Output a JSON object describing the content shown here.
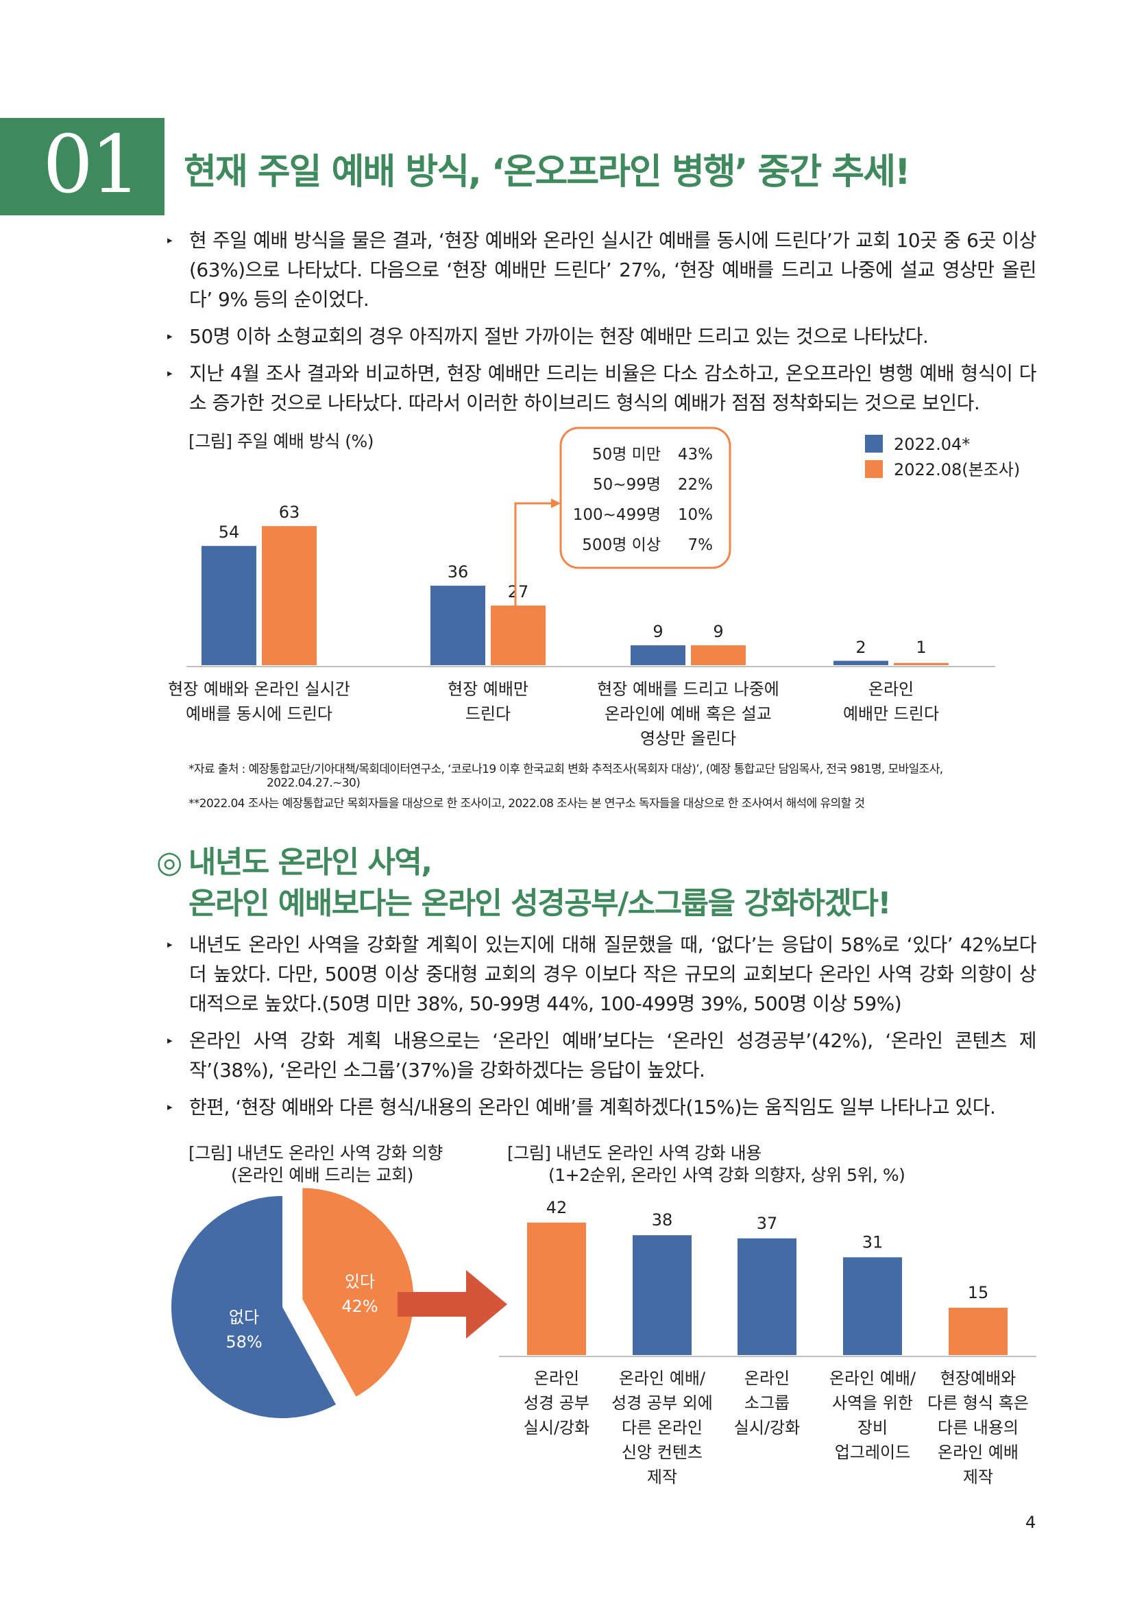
{
  "section": {
    "number": "01",
    "title": "현재 주일 예배 방식, ‘온오프라인 병행’ 중간 추세!"
  },
  "bullets1": [
    "현 주일 예배 방식을 물은 결과, ‘현장 예배와 온라인 실시간 예배를 동시에 드린다’가 교회 10곳 중 6곳 이상(63%)으로 나타났다. 다음으로 ‘현장 예배만 드린다’ 27%, ‘현장 예배를 드리고 나중에 설교 영상만 올린다’ 9% 등의 순이었다.",
    "50명 이하 소형교회의 경우 아직까지 절반 가까이는 현장 예배만 드리고 있는 것으로 나타났다.",
    "지난 4월 조사 결과와 비교하면, 현장 예배만 드리는 비율은 다소 감소하고, 온오프라인 병행 예배 형식이 다소 증가한 것으로 나타났다. 따라서 이러한 하이브리드 형식의 예배가 점점 정착화되는 것으로 보인다."
  ],
  "chart1": {
    "caption": "[그림] 주일 예배 방식 (%)",
    "callout": [
      {
        "label": "50명 미만",
        "value": "43%"
      },
      {
        "label": "50~99명",
        "value": "22%"
      },
      {
        "label": "100~499명",
        "value": "10%"
      },
      {
        "label": "500명 이상",
        "value": "7%"
      }
    ],
    "categories_lines": [
      [
        "현장 예배와 온라인 실시간",
        "예배를 동시에 드린다"
      ],
      [
        "현장 예배만",
        "드린다"
      ],
      [
        "현장 예배를 드리고 나중에",
        "온라인에 예배 혹은 설교",
        "영상만 올린다"
      ],
      [
        "온라인",
        "예배만 드린다"
      ]
    ]
  },
  "chart_data": [
    {
      "type": "bar",
      "title": "[그림] 주일 예배 방식 (%)",
      "categories": [
        "현장 예배와 온라인 실시간 예배를 동시에 드린다",
        "현장 예배만 드린다",
        "현장 예배를 드리고 나중에 온라인에 예배 혹은 설교 영상만 올린다",
        "온라인 예배만 드린다"
      ],
      "series": [
        {
          "name": "2022.04*",
          "values": [
            54,
            36,
            9,
            2
          ],
          "color": "#456ba7"
        },
        {
          "name": "2022.08(본조사)",
          "values": [
            63,
            27,
            9,
            1
          ],
          "color": "#f28448"
        }
      ],
      "ylim": [
        0,
        80
      ],
      "legend": "top-right",
      "grid": false
    },
    {
      "type": "pie",
      "title": "[그림] 내년도 온라인 사역 강화 의향 (온라인 예배 드리는 교회)",
      "slices": [
        {
          "label": "없다",
          "value": 58,
          "color": "#456ba7"
        },
        {
          "label": "있다",
          "value": 42,
          "color": "#f28448"
        }
      ]
    },
    {
      "type": "bar",
      "title": "[그림] 내년도 온라인 사역 강화 내용 (1+2순위, 온라인 사역 강화 의향자, 상위 5위, %)",
      "categories": [
        "온라인 성경 공부 실시/강화",
        "온라인 예배/ 성경 공부 외에 다른 온라인 신앙 컨텐츠 제작",
        "온라인 소그룹 실시/강화",
        "온라인 예배/ 사역을 위한 장비 업그레이드",
        "현장예배와 다른 형식 혹은 다른 내용의 온라인 예배 제작"
      ],
      "values": [
        42,
        38,
        37,
        31,
        15
      ],
      "colors": [
        "#f28448",
        "#456ba7",
        "#456ba7",
        "#456ba7",
        "#f28448"
      ],
      "ylim": [
        0,
        45
      ],
      "grid": false
    }
  ],
  "notes": {
    "n1a": "*자료 출처 : 예장통합교단/기아대책/목회데이터연구소, ‘코로나19 이후 한국교회 변화 추적조사(목회자 대상)’, (예장 통합교단 담임목사, 전국 981명, 모바일조사,",
    "n1b": "2022.04.27.~30)",
    "n2": "**2022.04 조사는 예장통합교단 목회자들을 대상으로 한 조사이고, 2022.08 조사는 본 연구소 독자들을 대상으로 한 조사여서 해석에 유의할 것"
  },
  "subheading": {
    "mark": "◎",
    "line1": "내년도 온라인 사역,",
    "line2": "온라인 예배보다는 온라인 성경공부/소그룹을 강화하겠다!"
  },
  "bullets2": [
    "내년도 온라인 사역을 강화할 계획이 있는지에 대해 질문했을 때, ‘없다’는 응답이 58%로 ‘있다’ 42%보다 더 높았다. 다만, 500명 이상 중대형 교회의 경우 이보다 작은 규모의 교회보다 온라인 사역 강화 의향이 상대적으로 높았다.(50명 미만 38%, 50-99명 44%, 100-499명 39%, 500명 이상 59%)",
    "온라인 사역 강화 계획 내용으로는 ‘온라인 예배’보다는 ‘온라인 성경공부’(42%), ‘온라인 콘텐츠 제작’(38%), ‘온라인 소그룹’(37%)을 강화하겠다는 응답이 높았다.",
    "한편, ‘현장 예배와 다른 형식/내용의 온라인 예배’를 계획하겠다(15%)는 움직임도 일부 나타나고 있다."
  ],
  "chart2": {
    "caption_line1": "[그림] 내년도 온라인 사역 강화 의향",
    "caption_line2": "(온라인 예배 드리는 교회)",
    "no_label": "없다",
    "no_value": "58%",
    "yes_label": "있다",
    "yes_value": "42%"
  },
  "chart3": {
    "caption_line1": "[그림] 내년도 온라인 사역 강화 내용",
    "caption_line2": "(1+2순위, 온라인 사역 강화 의향자, 상위 5위, %)",
    "categories_lines": [
      [
        "온라인",
        "성경 공부",
        "실시/강화"
      ],
      [
        "온라인 예배/",
        "성경 공부 외에",
        "다른 온라인",
        "신앙 컨텐츠",
        "제작"
      ],
      [
        "온라인",
        "소그룹",
        "실시/강화"
      ],
      [
        "온라인 예배/",
        "사역을 위한",
        "장비",
        "업그레이드"
      ],
      [
        "현장예배와",
        "다른 형식 혹은",
        "다른 내용의",
        "온라인 예배",
        "제작"
      ]
    ]
  },
  "page_number": "4"
}
